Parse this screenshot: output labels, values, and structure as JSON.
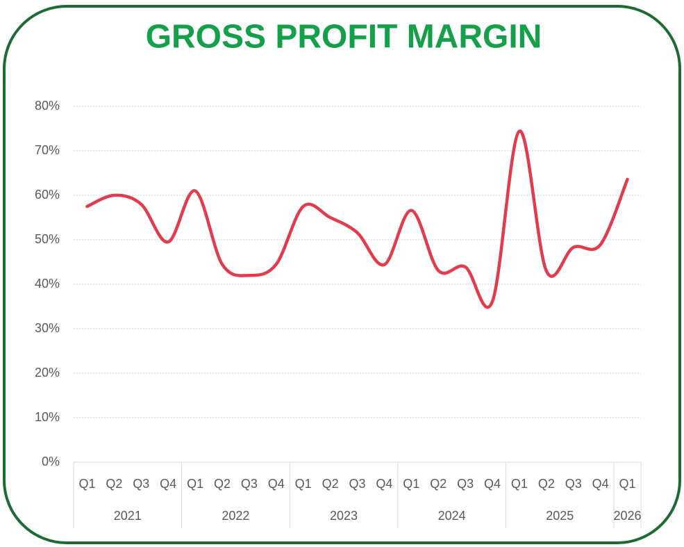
{
  "chart_data": {
    "type": "line",
    "title": "GROSS PROFIT MARGIN",
    "categories": [
      "Q1",
      "Q2",
      "Q3",
      "Q4",
      "Q1",
      "Q2",
      "Q3",
      "Q4",
      "Q1",
      "Q2",
      "Q3",
      "Q4",
      "Q1",
      "Q2",
      "Q3",
      "Q4",
      "Q1",
      "Q2",
      "Q3",
      "Q4",
      "Q1"
    ],
    "groups": [
      {
        "label": "2021",
        "size": 4
      },
      {
        "label": "2022",
        "size": 4
      },
      {
        "label": "2023",
        "size": 4
      },
      {
        "label": "2024",
        "size": 4
      },
      {
        "label": "2025",
        "size": 4
      },
      {
        "label": "2026",
        "size": 1
      }
    ],
    "series": [
      {
        "color": "#e23b4b",
        "values": [
          57.5,
          60,
          58,
          49.5,
          61,
          44.5,
          42,
          44.5,
          57.5,
          55,
          51.6,
          44.4,
          56.6,
          43.1,
          43.9,
          36.1,
          74.4,
          43,
          48.3,
          48.9,
          63.6
        ]
      }
    ],
    "ylim": [
      0,
      80
    ],
    "yticks": [
      {
        "value": 0,
        "label": "0%"
      },
      {
        "value": 10,
        "label": "10%"
      },
      {
        "value": 20,
        "label": "20%"
      },
      {
        "value": 30,
        "label": "30%"
      },
      {
        "value": 40,
        "label": "40%"
      },
      {
        "value": 50,
        "label": "50%"
      },
      {
        "value": 60,
        "label": "60%"
      },
      {
        "value": 70,
        "label": "70%"
      },
      {
        "value": 80,
        "label": "80%"
      }
    ],
    "grid": true
  }
}
